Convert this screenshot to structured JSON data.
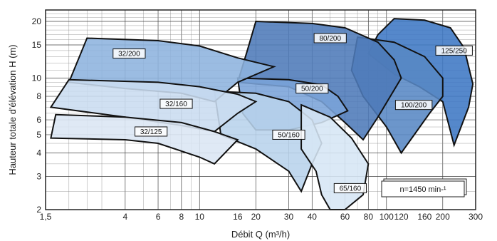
{
  "chart_data": {
    "type": "area",
    "title": "",
    "xlabel": "Débit Q (m³/h)",
    "ylabel": "Hauteur totale d'élévation  H (m)",
    "xscale": "log",
    "yscale": "log",
    "xlim": [
      1.5,
      300
    ],
    "ylim": [
      2,
      23
    ],
    "xticks": [
      1.5,
      4,
      6,
      8,
      10,
      16,
      20,
      30,
      40,
      60,
      80,
      100,
      120,
      160,
      200,
      300
    ],
    "xtick_labels": [
      "1,5",
      "4",
      "6",
      "8",
      "10",
      "16",
      "20",
      "30",
      "40",
      "60",
      "80",
      "100",
      "120",
      "160",
      "200",
      "300"
    ],
    "yticks": [
      2,
      3,
      4,
      5,
      6,
      8,
      10,
      15,
      20
    ],
    "ytick_labels": [
      "2",
      "3",
      "4",
      "5",
      "6",
      "8",
      "10",
      "15",
      "20"
    ],
    "grid": true,
    "annotation": "n=1450 min-¹",
    "series": [
      {
        "name": "125/250",
        "color": "#3d78c4",
        "label_at": [
          230,
          14
        ],
        "polygon": [
          [
            110,
            20.7
          ],
          [
            160,
            20.3
          ],
          [
            220,
            18.5
          ],
          [
            260,
            14.5
          ],
          [
            290,
            9.3
          ],
          [
            275,
            7.0
          ],
          [
            230,
            4.4
          ],
          [
            230,
            4.4
          ],
          [
            200,
            7.5
          ],
          [
            150,
            9.0
          ],
          [
            110,
            10.5
          ],
          [
            80,
            13.5
          ],
          [
            90,
            17.0
          ]
        ]
      },
      {
        "name": "100/200",
        "color": "#5887c4",
        "label_at": [
          140,
          7.2
        ],
        "polygon": [
          [
            70,
            16.5
          ],
          [
            110,
            15.5
          ],
          [
            160,
            13.0
          ],
          [
            200,
            10.0
          ],
          [
            200,
            8.0
          ],
          [
            170,
            6.5
          ],
          [
            120,
            4.0
          ],
          [
            100,
            5.5
          ],
          [
            75,
            8.0
          ],
          [
            65,
            11.0
          ]
        ]
      },
      {
        "name": "80/200",
        "color": "#4d7ab8",
        "label_at": [
          50,
          16.3
        ],
        "polygon": [
          [
            20,
            20.0
          ],
          [
            40,
            19.5
          ],
          [
            60,
            18.5
          ],
          [
            90,
            15.5
          ],
          [
            110,
            12.5
          ],
          [
            120,
            10.0
          ],
          [
            90,
            6.2
          ],
          [
            75,
            4.7
          ],
          [
            60,
            5.8
          ],
          [
            45,
            7.5
          ],
          [
            30,
            9.0
          ],
          [
            16,
            9.5
          ],
          [
            18,
            14.0
          ]
        ]
      },
      {
        "name": "50/200",
        "color": "#7aa3d8",
        "label_at": [
          40,
          8.8
        ],
        "polygon": [
          [
            16,
            10.0
          ],
          [
            30,
            9.8
          ],
          [
            45,
            9.2
          ],
          [
            55,
            8.0
          ],
          [
            62,
            6.7
          ],
          [
            45,
            5.8
          ],
          [
            30,
            5.3
          ],
          [
            20,
            5.3
          ],
          [
            17,
            6.5
          ]
        ]
      },
      {
        "name": "50/160",
        "color": "#b8d3ec",
        "label_at": [
          30,
          5.0
        ],
        "polygon": [
          [
            12,
            8.5
          ],
          [
            20,
            8.3
          ],
          [
            30,
            7.5
          ],
          [
            40,
            6.0
          ],
          [
            45,
            4.5
          ],
          [
            40,
            3.5
          ],
          [
            35,
            2.5
          ],
          [
            30,
            3.2
          ],
          [
            20,
            4.2
          ],
          [
            13,
            5.0
          ]
        ]
      },
      {
        "name": "32/200",
        "color": "#8db3de",
        "label_at": [
          4.2,
          13.5
        ],
        "polygon": [
          [
            2.5,
            16.3
          ],
          [
            6,
            15.8
          ],
          [
            10,
            14.8
          ],
          [
            16,
            12.8
          ],
          [
            25,
            11.5
          ],
          [
            16,
            9.5
          ],
          [
            12,
            7.5
          ],
          [
            8,
            8.3
          ],
          [
            4,
            8.8
          ],
          [
            2.0,
            9.5
          ]
        ]
      },
      {
        "name": "32/160",
        "color": "#c9dcf0",
        "label_at": [
          7.5,
          7.3
        ],
        "polygon": [
          [
            2.0,
            9.8
          ],
          [
            6,
            9.5
          ],
          [
            10,
            9.0
          ],
          [
            16,
            8.2
          ],
          [
            20,
            7.5
          ],
          [
            16,
            6.5
          ],
          [
            12,
            5.2
          ],
          [
            8,
            5.6
          ],
          [
            4,
            6.2
          ],
          [
            1.6,
            7.0
          ]
        ]
      },
      {
        "name": "32/125",
        "color": "#dbe6f4",
        "label_at": [
          5.5,
          5.2
        ],
        "polygon": [
          [
            1.7,
            6.4
          ],
          [
            4,
            6.2
          ],
          [
            8,
            5.8
          ],
          [
            12,
            5.2
          ],
          [
            16,
            4.7
          ],
          [
            12,
            3.5
          ],
          [
            10,
            3.8
          ],
          [
            6,
            4.5
          ],
          [
            4,
            4.7
          ],
          [
            1.6,
            4.8
          ]
        ]
      },
      {
        "name": "65/160",
        "color": "#d6e6f5",
        "label_at": [
          64,
          2.6
        ],
        "polygon": [
          [
            35,
            7.2
          ],
          [
            50,
            6.2
          ],
          [
            65,
            4.8
          ],
          [
            80,
            3.5
          ],
          [
            75,
            2.4
          ],
          [
            60,
            2.0
          ],
          [
            50,
            2.0
          ],
          [
            45,
            2.4
          ],
          [
            42,
            3.2
          ],
          [
            35,
            4.2
          ]
        ]
      }
    ]
  }
}
